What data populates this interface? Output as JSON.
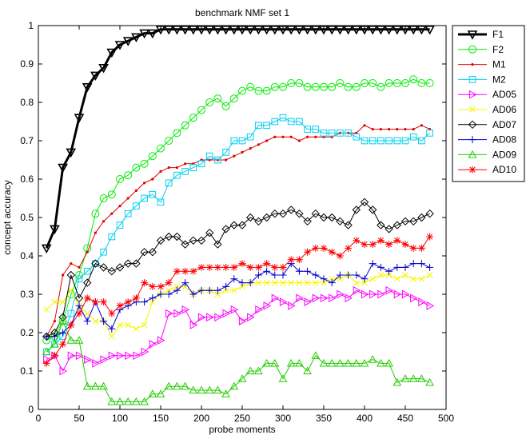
{
  "chart_data": {
    "type": "line",
    "title": "benchmark NMF set 1",
    "xlabel": "probe moments",
    "ylabel": "concept accuracy",
    "xlim": [
      0,
      500
    ],
    "ylim": [
      0,
      1
    ],
    "xticks": [
      "0",
      "50",
      "100",
      "150",
      "200",
      "250",
      "300",
      "350",
      "400",
      "450",
      "500"
    ],
    "yticks": [
      "0",
      "0.1",
      "0.2",
      "0.3",
      "0.4",
      "0.5",
      "0.6",
      "0.7",
      "0.8",
      "0.9",
      "1"
    ],
    "grid": false,
    "legend_position": "outside-top-right",
    "x": [
      10,
      20,
      30,
      40,
      50,
      60,
      70,
      80,
      90,
      100,
      110,
      120,
      130,
      140,
      150,
      160,
      170,
      180,
      190,
      200,
      210,
      220,
      230,
      240,
      250,
      260,
      270,
      280,
      290,
      300,
      310,
      320,
      330,
      340,
      350,
      360,
      370,
      380,
      390,
      400,
      410,
      420,
      430,
      440,
      450,
      460,
      470,
      480
    ],
    "series": [
      {
        "name": "F1",
        "color": "#000000",
        "marker": "triangle-down",
        "line_width": 3,
        "values": [
          0.42,
          0.47,
          0.63,
          0.67,
          0.76,
          0.84,
          0.87,
          0.89,
          0.93,
          0.95,
          0.96,
          0.97,
          0.98,
          0.98,
          0.99,
          0.99,
          0.99,
          0.99,
          0.99,
          0.99,
          0.99,
          0.99,
          0.99,
          0.99,
          0.99,
          0.99,
          0.99,
          0.99,
          0.99,
          0.99,
          0.99,
          0.99,
          0.99,
          0.99,
          0.99,
          0.99,
          0.99,
          0.99,
          0.99,
          0.99,
          0.99,
          0.99,
          0.99,
          0.99,
          0.99,
          0.99,
          0.99,
          0.99
        ]
      },
      {
        "name": "F2",
        "color": "#00ee00",
        "marker": "circle",
        "line_width": 1,
        "values": [
          0.18,
          0.19,
          0.23,
          0.3,
          0.35,
          0.42,
          0.51,
          0.55,
          0.56,
          0.6,
          0.61,
          0.63,
          0.64,
          0.66,
          0.68,
          0.7,
          0.72,
          0.74,
          0.76,
          0.78,
          0.8,
          0.81,
          0.79,
          0.81,
          0.83,
          0.84,
          0.83,
          0.83,
          0.84,
          0.84,
          0.85,
          0.85,
          0.84,
          0.84,
          0.84,
          0.84,
          0.85,
          0.84,
          0.84,
          0.85,
          0.85,
          0.84,
          0.85,
          0.85,
          0.85,
          0.86,
          0.85,
          0.85
        ]
      },
      {
        "name": "M1",
        "color": "#e00000",
        "marker": "dot",
        "line_width": 1,
        "values": [
          0.19,
          0.23,
          0.35,
          0.38,
          0.37,
          0.41,
          0.46,
          0.49,
          0.51,
          0.53,
          0.55,
          0.57,
          0.59,
          0.6,
          0.62,
          0.63,
          0.63,
          0.64,
          0.64,
          0.65,
          0.65,
          0.65,
          0.65,
          0.66,
          0.67,
          0.68,
          0.69,
          0.7,
          0.71,
          0.71,
          0.71,
          0.7,
          0.71,
          0.71,
          0.71,
          0.71,
          0.72,
          0.72,
          0.72,
          0.74,
          0.73,
          0.73,
          0.73,
          0.73,
          0.73,
          0.73,
          0.74,
          0.73
        ]
      },
      {
        "name": "M2",
        "color": "#00d0f0",
        "marker": "square",
        "line_width": 1,
        "values": [
          0.15,
          0.17,
          0.19,
          0.25,
          0.34,
          0.36,
          0.38,
          0.41,
          0.45,
          0.48,
          0.51,
          0.53,
          0.55,
          0.56,
          0.54,
          0.59,
          0.61,
          0.62,
          0.63,
          0.64,
          0.66,
          0.65,
          0.67,
          0.7,
          0.7,
          0.71,
          0.74,
          0.74,
          0.75,
          0.76,
          0.75,
          0.75,
          0.73,
          0.73,
          0.72,
          0.72,
          0.72,
          0.72,
          0.71,
          0.7,
          0.7,
          0.7,
          0.7,
          0.7,
          0.7,
          0.71,
          0.7,
          0.72
        ]
      },
      {
        "name": "AD05",
        "color": "#ff00ff",
        "marker": "triangle-right",
        "line_width": 1,
        "values": [
          0.13,
          0.14,
          0.1,
          0.14,
          0.14,
          0.13,
          0.12,
          0.13,
          0.14,
          0.14,
          0.14,
          0.14,
          0.15,
          0.17,
          0.18,
          0.25,
          0.25,
          0.26,
          0.22,
          0.24,
          0.24,
          0.24,
          0.25,
          0.26,
          0.23,
          0.24,
          0.26,
          0.27,
          0.29,
          0.28,
          0.27,
          0.29,
          0.28,
          0.29,
          0.29,
          0.29,
          0.3,
          0.29,
          0.31,
          0.3,
          0.3,
          0.3,
          0.31,
          0.3,
          0.3,
          0.29,
          0.28,
          0.27
        ]
      },
      {
        "name": "AD06",
        "color": "#f5f500",
        "marker": "x",
        "line_width": 1,
        "values": [
          0.26,
          0.28,
          0.28,
          0.31,
          0.27,
          0.25,
          0.23,
          0.23,
          0.19,
          0.22,
          0.22,
          0.21,
          0.22,
          0.28,
          0.3,
          0.31,
          0.32,
          0.32,
          0.3,
          0.31,
          0.31,
          0.3,
          0.31,
          0.31,
          0.32,
          0.33,
          0.33,
          0.33,
          0.33,
          0.33,
          0.33,
          0.33,
          0.33,
          0.33,
          0.33,
          0.34,
          0.34,
          0.35,
          0.33,
          0.33,
          0.34,
          0.35,
          0.35,
          0.34,
          0.35,
          0.34,
          0.34,
          0.35
        ]
      },
      {
        "name": "AD07",
        "color": "#000000",
        "marker": "diamond",
        "line_width": 1,
        "values": [
          0.19,
          0.2,
          0.24,
          0.35,
          0.29,
          0.33,
          0.38,
          0.37,
          0.36,
          0.37,
          0.38,
          0.38,
          0.41,
          0.41,
          0.44,
          0.45,
          0.45,
          0.43,
          0.44,
          0.44,
          0.46,
          0.43,
          0.47,
          0.48,
          0.48,
          0.5,
          0.49,
          0.5,
          0.51,
          0.51,
          0.52,
          0.51,
          0.49,
          0.51,
          0.5,
          0.5,
          0.49,
          0.48,
          0.52,
          0.54,
          0.52,
          0.48,
          0.47,
          0.48,
          0.49,
          0.49,
          0.5,
          0.51
        ]
      },
      {
        "name": "AD08",
        "color": "#0000cc",
        "marker": "plus",
        "line_width": 1,
        "values": [
          0.19,
          0.19,
          0.2,
          0.22,
          0.27,
          0.23,
          0.28,
          0.23,
          0.21,
          0.26,
          0.27,
          0.28,
          0.28,
          0.29,
          0.3,
          0.3,
          0.31,
          0.33,
          0.3,
          0.31,
          0.31,
          0.31,
          0.32,
          0.34,
          0.33,
          0.33,
          0.35,
          0.36,
          0.35,
          0.35,
          0.38,
          0.36,
          0.36,
          0.35,
          0.34,
          0.33,
          0.35,
          0.35,
          0.35,
          0.34,
          0.38,
          0.37,
          0.36,
          0.37,
          0.37,
          0.38,
          0.38,
          0.37
        ]
      },
      {
        "name": "AD09",
        "color": "#22cc00",
        "marker": "triangle-up",
        "line_width": 1,
        "values": [
          0.15,
          0.17,
          0.23,
          0.18,
          0.18,
          0.06,
          0.06,
          0.06,
          0.02,
          0.02,
          0.02,
          0.02,
          0.02,
          0.04,
          0.04,
          0.06,
          0.06,
          0.06,
          0.05,
          0.05,
          0.05,
          0.05,
          0.04,
          0.06,
          0.08,
          0.1,
          0.1,
          0.12,
          0.12,
          0.08,
          0.12,
          0.12,
          0.1,
          0.14,
          0.12,
          0.12,
          0.12,
          0.12,
          0.12,
          0.12,
          0.13,
          0.12,
          0.12,
          0.07,
          0.08,
          0.08,
          0.08,
          0.07
        ]
      },
      {
        "name": "AD10",
        "color": "#ff0000",
        "marker": "asterisk",
        "line_width": 1,
        "values": [
          0.12,
          0.14,
          0.17,
          0.22,
          0.25,
          0.29,
          0.28,
          0.28,
          0.25,
          0.27,
          0.28,
          0.29,
          0.33,
          0.32,
          0.32,
          0.33,
          0.36,
          0.36,
          0.36,
          0.37,
          0.37,
          0.37,
          0.37,
          0.37,
          0.38,
          0.37,
          0.37,
          0.38,
          0.37,
          0.37,
          0.39,
          0.39,
          0.41,
          0.42,
          0.42,
          0.41,
          0.4,
          0.42,
          0.44,
          0.43,
          0.43,
          0.44,
          0.43,
          0.44,
          0.43,
          0.42,
          0.42,
          0.45
        ]
      }
    ]
  }
}
